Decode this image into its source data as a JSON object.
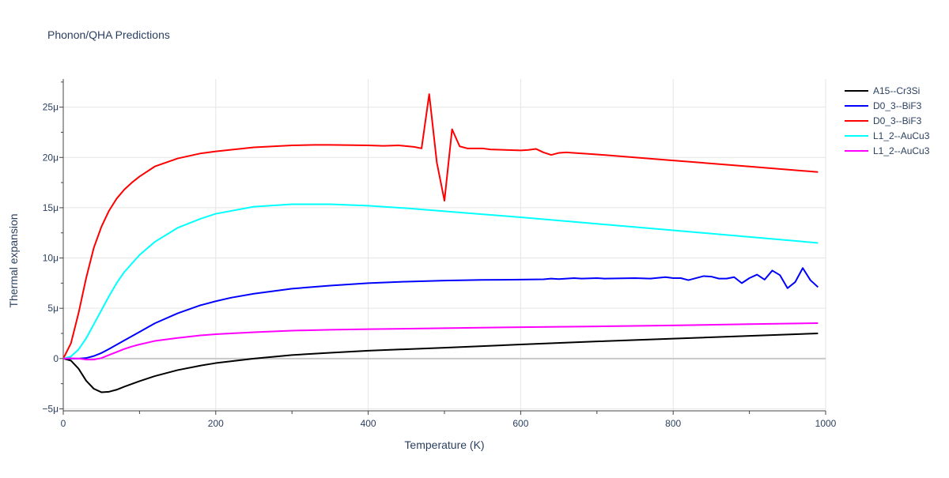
{
  "chart_data": {
    "type": "line",
    "title": "Phonon/QHA Predictions",
    "xlabel": "Temperature (K)",
    "ylabel": "Thermal expansion",
    "xlim": [
      0,
      1000
    ],
    "ylim": [
      -5.2e-06,
      2.78e-05
    ],
    "x_ticks": [
      0,
      200,
      400,
      600,
      800,
      1000
    ],
    "x_tick_labels": [
      "0",
      "200",
      "400",
      "600",
      "800",
      "1000"
    ],
    "y_ticks": [
      -5e-06,
      0,
      5e-06,
      1e-05,
      1.5e-05,
      2e-05,
      2.5e-05
    ],
    "y_tick_labels": [
      "−5μ",
      "0",
      "5μ",
      "10μ",
      "15μ",
      "20μ",
      "25μ"
    ],
    "grid": true,
    "legend_position": "right",
    "series": [
      {
        "name": "A15--Cr3Si",
        "color": "#000000",
        "x": [
          0,
          10,
          20,
          30,
          40,
          50,
          60,
          70,
          80,
          100,
          120,
          150,
          180,
          200,
          250,
          300,
          350,
          400,
          450,
          500,
          600,
          700,
          800,
          900,
          990
        ],
        "y": [
          0,
          -2e-07,
          -1e-06,
          -2.2e-06,
          -3e-06,
          -3.35e-06,
          -3.3e-06,
          -3.1e-06,
          -2.8e-06,
          -2.25e-06,
          -1.75e-06,
          -1.15e-06,
          -7e-07,
          -4.5e-07,
          0.0,
          3.5e-07,
          5.8e-07,
          7.8e-07,
          9.3e-07,
          1.08e-06,
          1.4e-06,
          1.7e-06,
          1.98e-06,
          2.25e-06,
          2.5e-06
        ]
      },
      {
        "name": "D0_3--BiF3",
        "color": "#0000ff",
        "x": [
          0,
          10,
          20,
          30,
          40,
          50,
          60,
          80,
          100,
          120,
          150,
          180,
          200,
          220,
          250,
          300,
          350,
          370,
          400,
          450,
          500,
          550,
          600,
          630,
          640,
          650,
          660,
          670,
          680,
          700,
          710,
          750,
          770,
          790,
          800,
          810,
          820,
          840,
          850,
          860,
          870,
          880,
          890,
          900,
          910,
          920,
          930,
          940,
          950,
          960,
          970,
          980,
          990
        ],
        "y": [
          0,
          0,
          0,
          5e-08,
          2.5e-07,
          5.5e-07,
          9.5e-07,
          1.8e-06,
          2.65e-06,
          3.5e-06,
          4.5e-06,
          5.3e-06,
          5.7e-06,
          6.05e-06,
          6.45e-06,
          6.95e-06,
          7.25e-06,
          7.35e-06,
          7.5e-06,
          7.65e-06,
          7.75e-06,
          7.82e-06,
          7.85e-06,
          7.88e-06,
          7.95e-06,
          7.9e-06,
          7.95e-06,
          8e-06,
          7.95e-06,
          8e-06,
          7.95e-06,
          8e-06,
          7.95e-06,
          8.1e-06,
          8e-06,
          8e-06,
          7.8e-06,
          8.2e-06,
          8.15e-06,
          7.95e-06,
          7.95e-06,
          8.1e-06,
          7.5e-06,
          8e-06,
          8.35e-06,
          7.85e-06,
          8.75e-06,
          8.3e-06,
          7e-06,
          7.6e-06,
          9e-06,
          7.8e-06,
          7.1e-06
        ]
      },
      {
        "name": "D0_3--BiF3",
        "color": "#ff0000",
        "x": [
          0,
          10,
          20,
          30,
          40,
          50,
          60,
          70,
          80,
          90,
          100,
          120,
          150,
          180,
          200,
          250,
          300,
          330,
          350,
          400,
          420,
          440,
          460,
          470,
          480,
          490,
          500,
          510,
          520,
          530,
          550,
          560,
          600,
          610,
          620,
          630,
          640,
          650,
          660,
          700,
          800,
          900,
          990
        ],
        "y": [
          0,
          1.5e-06,
          4.5e-06,
          8e-06,
          1.1e-05,
          1.31e-05,
          1.47e-05,
          1.59e-05,
          1.68e-05,
          1.75e-05,
          1.81e-05,
          1.91e-05,
          1.99e-05,
          2.04e-05,
          2.06e-05,
          2.1e-05,
          2.12e-05,
          2.125e-05,
          2.125e-05,
          2.12e-05,
          2.115e-05,
          2.12e-05,
          2.105e-05,
          2.09e-05,
          2.63e-05,
          1.95e-05,
          1.57e-05,
          2.28e-05,
          2.11e-05,
          2.09e-05,
          2.09e-05,
          2.08e-05,
          2.07e-05,
          2.075e-05,
          2.085e-05,
          2.05e-05,
          2.025e-05,
          2.045e-05,
          2.05e-05,
          2.03e-05,
          1.97e-05,
          1.91e-05,
          1.855e-05
        ]
      },
      {
        "name": "L1_2--AuCu3",
        "color": "#00ffff",
        "x": [
          0,
          10,
          20,
          30,
          40,
          50,
          60,
          70,
          80,
          100,
          120,
          150,
          180,
          200,
          250,
          300,
          350,
          400,
          450,
          500,
          600,
          700,
          800,
          900,
          990
        ],
        "y": [
          0,
          2e-07,
          9e-07,
          2e-06,
          3.4e-06,
          4.8e-06,
          6.2e-06,
          7.5e-06,
          8.6e-06,
          1.03e-05,
          1.16e-05,
          1.3e-05,
          1.39e-05,
          1.44e-05,
          1.51e-05,
          1.535e-05,
          1.535e-05,
          1.52e-05,
          1.495e-05,
          1.465e-05,
          1.405e-05,
          1.34e-05,
          1.275e-05,
          1.21e-05,
          1.15e-05
        ]
      },
      {
        "name": "L1_2--AuCu3",
        "color": "#ff00ff",
        "x": [
          0,
          10,
          20,
          30,
          40,
          50,
          60,
          70,
          80,
          90,
          100,
          120,
          150,
          180,
          200,
          250,
          300,
          350,
          400,
          500,
          600,
          700,
          800,
          900,
          990
        ],
        "y": [
          0,
          2e-08,
          0,
          -1e-07,
          -1e-07,
          5e-08,
          3.5e-07,
          6.5e-07,
          9.5e-07,
          1.2e-06,
          1.4e-06,
          1.75e-06,
          2.05e-06,
          2.3e-06,
          2.42e-06,
          2.62e-06,
          2.78e-06,
          2.86e-06,
          2.92e-06,
          3.02e-06,
          3.12e-06,
          3.2e-06,
          3.3e-06,
          3.42e-06,
          3.52e-06
        ]
      }
    ]
  }
}
